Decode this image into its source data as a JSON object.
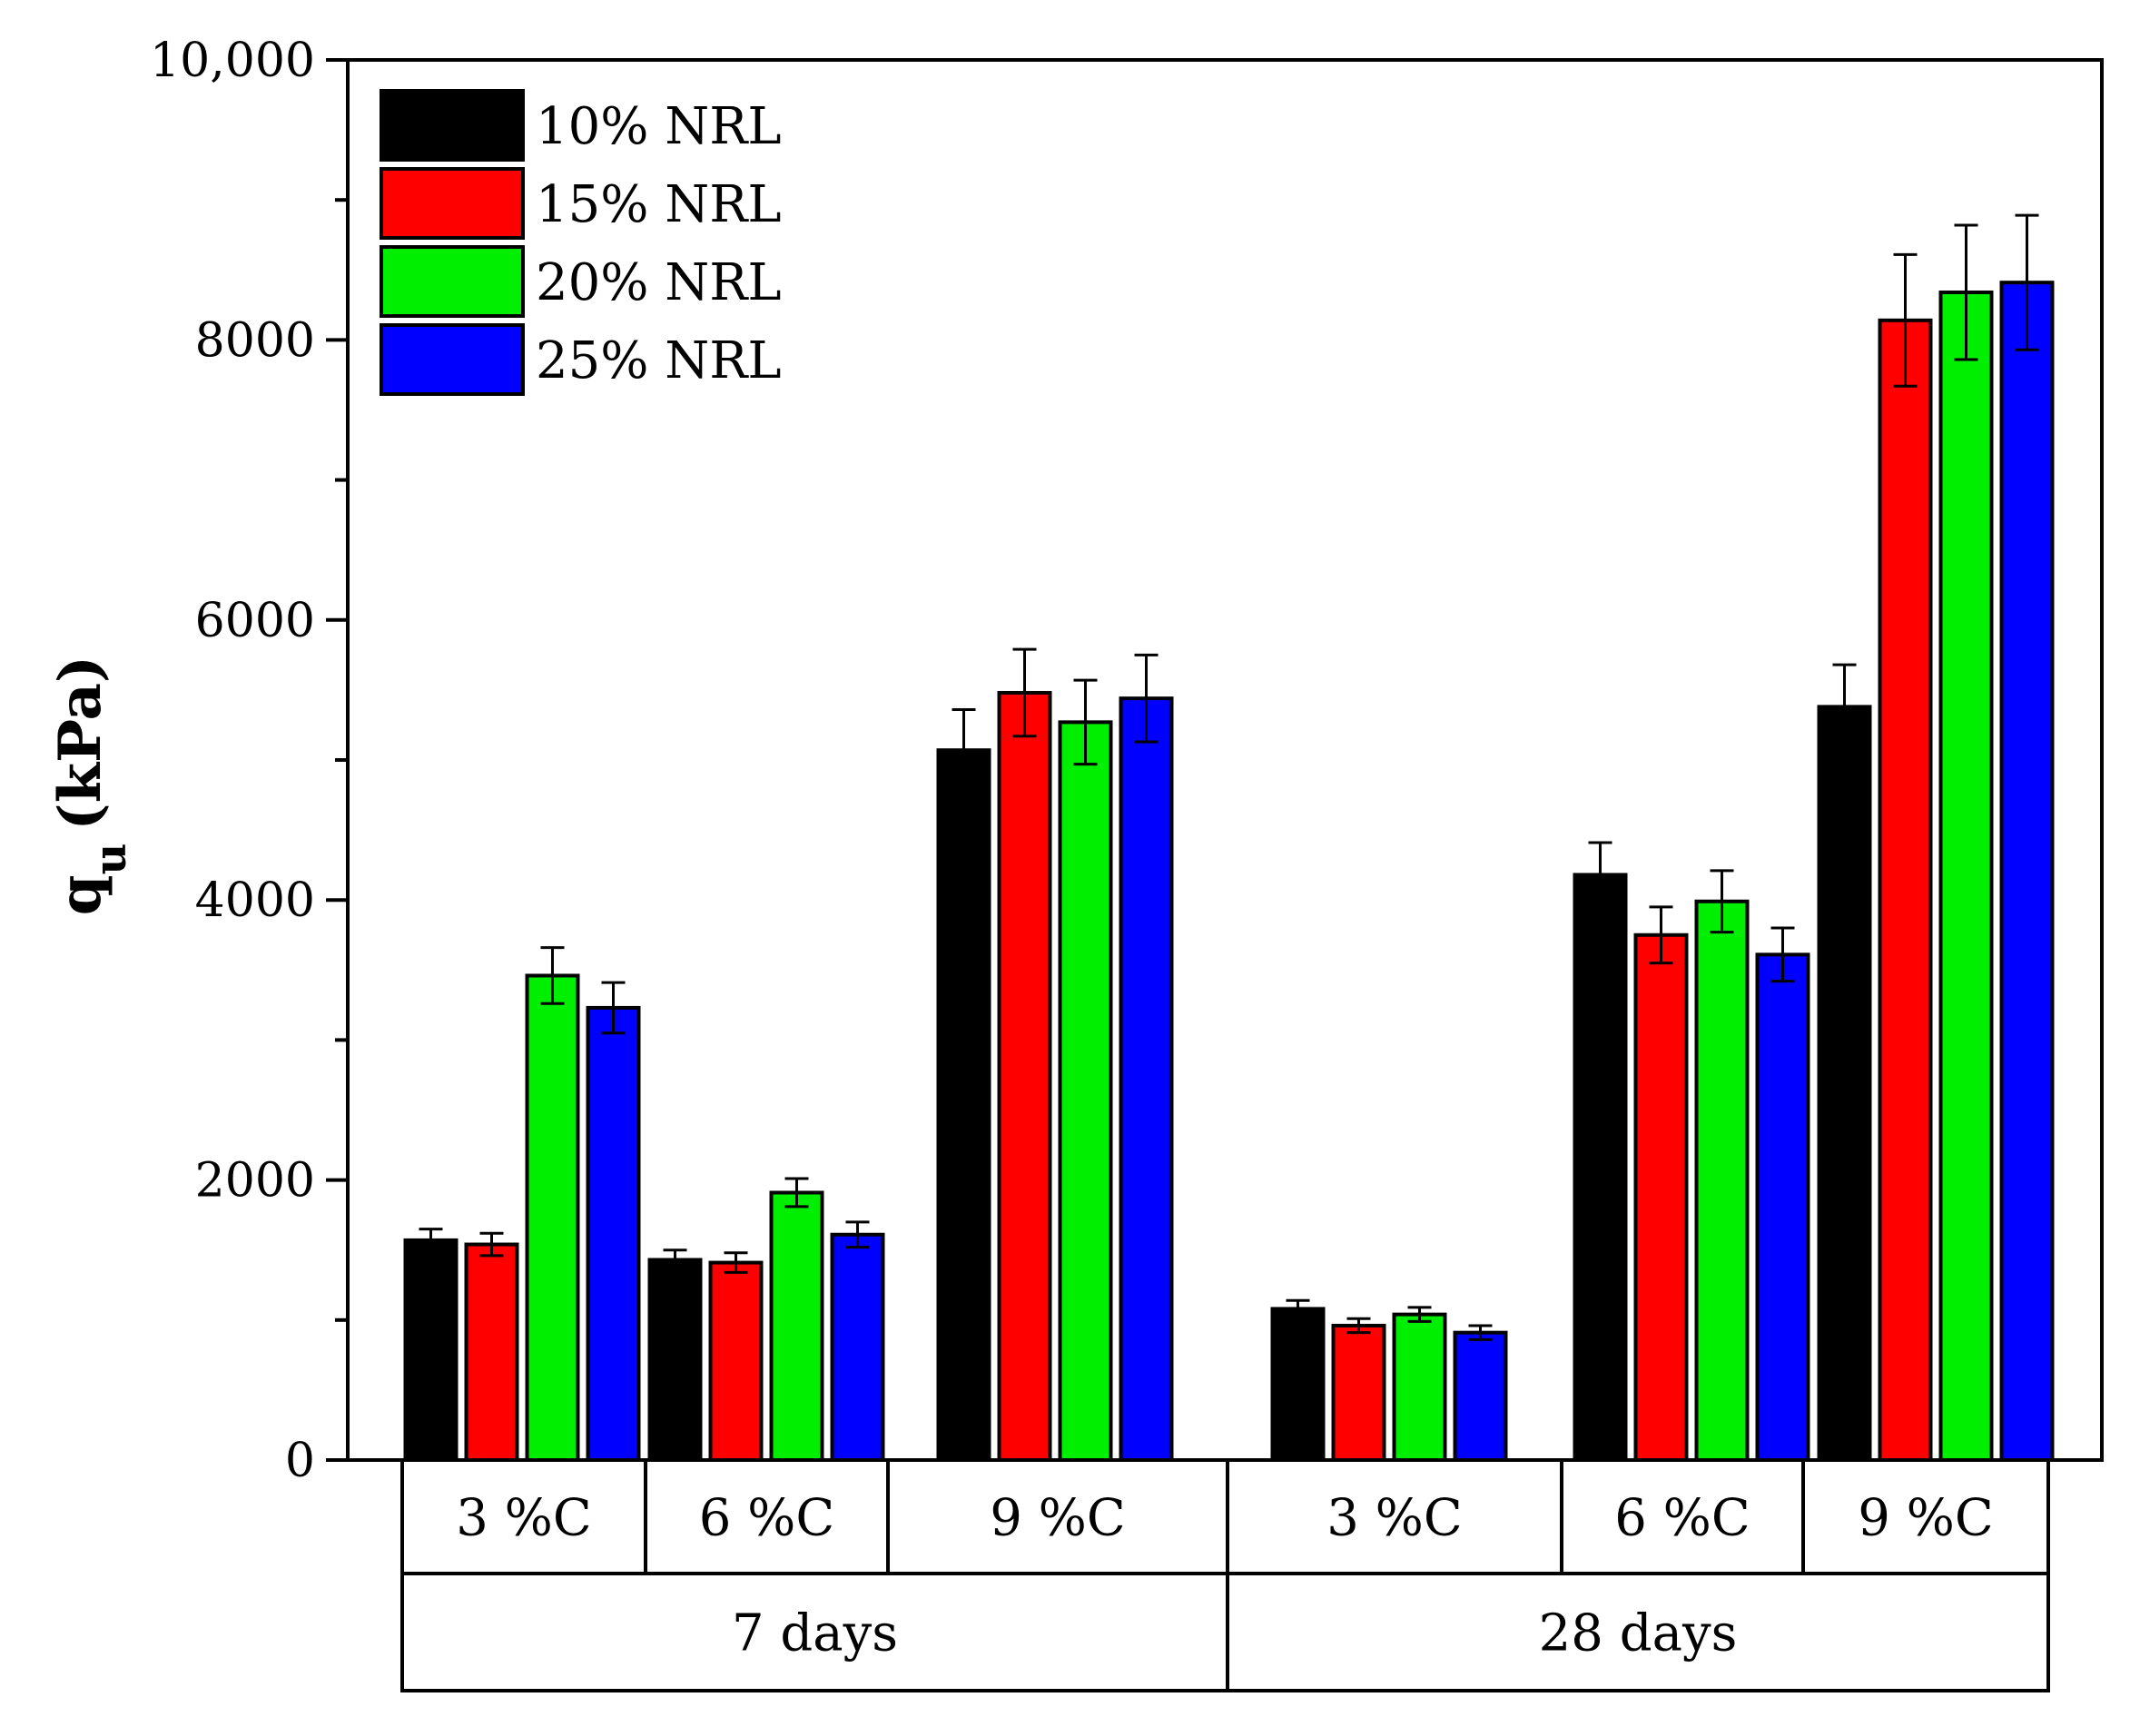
{
  "chart_data": {
    "type": "bar",
    "title": "",
    "ylabel": "q",
    "ylabel_subscript": "u",
    "ylabel_unit": "(kPa)",
    "xlabel": "",
    "ylim": [
      0,
      10000
    ],
    "yticks": [
      0,
      2000,
      4000,
      6000,
      8000,
      10000
    ],
    "ytick_labels": [
      "0",
      "2000",
      "4000",
      "6000",
      "8000",
      "10,000"
    ],
    "groups": [
      {
        "label": "7 days",
        "categories": [
          {
            "label": "3 %C",
            "values": [
              1570,
              1540,
              3460,
              3230
            ],
            "errors": [
              80,
              80,
              200,
              180
            ]
          },
          {
            "label": "6 %C",
            "values": [
              1430,
              1410,
              1910,
              1610
            ],
            "errors": [
              70,
              70,
              100,
              90
            ]
          },
          {
            "label": "9 %C",
            "values": [
              5070,
              5480,
              5270,
              5440
            ],
            "errors": [
              290,
              310,
              300,
              310
            ]
          }
        ]
      },
      {
        "label": "28 days",
        "categories": [
          {
            "label": "3 %C",
            "values": [
              1080,
              960,
              1040,
              910
            ],
            "errors": [
              60,
              50,
              50,
              50
            ]
          },
          {
            "label": "6 %C",
            "values": [
              4180,
              3750,
              3990,
              3610
            ],
            "errors": [
              230,
              200,
              220,
              190
            ]
          },
          {
            "label": "9 %C",
            "values": [
              5380,
              8140,
              8340,
              8410
            ],
            "errors": [
              300,
              470,
              480,
              480
            ]
          }
        ]
      }
    ],
    "series": [
      {
        "name": "10% NRL",
        "color": "#000000"
      },
      {
        "name": "15% NRL",
        "color": "#ff0000"
      },
      {
        "name": "20% NRL",
        "color": "#00ee00"
      },
      {
        "name": "25% NRL",
        "color": "#0000ff"
      }
    ],
    "legend_position": "top-left",
    "grid": false
  }
}
